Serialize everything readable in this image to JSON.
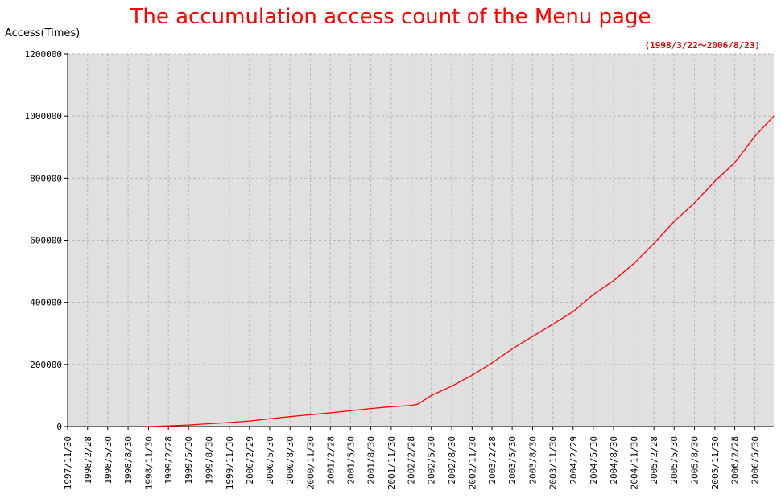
{
  "chart_data": {
    "type": "line",
    "title": "The accumulation access count of the Menu page",
    "subtitle": "(1998/3/22～2006/8/23)",
    "ylabel": "Access(Times)",
    "xlabel": "",
    "ylim": [
      0,
      1200000
    ],
    "y_ticks": [
      "0",
      "200000",
      "400000",
      "600000",
      "800000",
      "1000000",
      "1200000"
    ],
    "x_ticks": [
      "1997/11/30",
      "1998/2/28",
      "1998/5/30",
      "1998/8/30",
      "1998/11/30",
      "1999/2/28",
      "1999/5/30",
      "1999/8/30",
      "1999/11/30",
      "2000/2/29",
      "2000/5/30",
      "2000/8/30",
      "2000/11/30",
      "2001/2/28",
      "2001/5/30",
      "2001/8/30",
      "2001/11/30",
      "2002/2/28",
      "2002/5/30",
      "2002/8/30",
      "2002/11/30",
      "2003/2/28",
      "2003/5/30",
      "2003/8/30",
      "2003/11/30",
      "2004/2/29",
      "2004/5/30",
      "2004/8/30",
      "2004/11/30",
      "2005/2/28",
      "2005/5/30",
      "2005/8/30",
      "2005/11/30",
      "2006/2/28",
      "2006/5/30"
    ],
    "grid": true,
    "line_color": "#ff0000",
    "plot_background": "#e0e0e0",
    "series": [
      {
        "x": [
          "1998/11/30",
          "1999/2/28",
          "1999/5/30",
          "1999/8/30",
          "1999/11/30",
          "2000/2/29",
          "2000/5/30",
          "2000/8/30",
          "2000/11/30",
          "2001/2/28",
          "2001/5/30",
          "2001/8/30",
          "2001/11/30",
          "2002/2/28",
          "2002/3/30",
          "2002/5/30",
          "2002/8/30",
          "2002/11/30",
          "2003/2/28",
          "2003/5/30",
          "2003/8/30",
          "2003/11/30",
          "2004/2/29",
          "2004/5/30",
          "2004/8/30",
          "2004/11/30",
          "2005/2/28",
          "2005/5/30",
          "2005/8/30",
          "2005/11/30",
          "2006/2/28",
          "2006/5/30",
          "2006/8/23"
        ],
        "values": [
          0,
          2000,
          5000,
          9000,
          13000,
          18000,
          25000,
          32000,
          38000,
          44000,
          51000,
          58000,
          64000,
          68000,
          72000,
          100000,
          130000,
          165000,
          205000,
          250000,
          290000,
          330000,
          370000,
          425000,
          470000,
          525000,
          590000,
          660000,
          720000,
          790000,
          850000,
          935000,
          1000000
        ]
      }
    ]
  }
}
